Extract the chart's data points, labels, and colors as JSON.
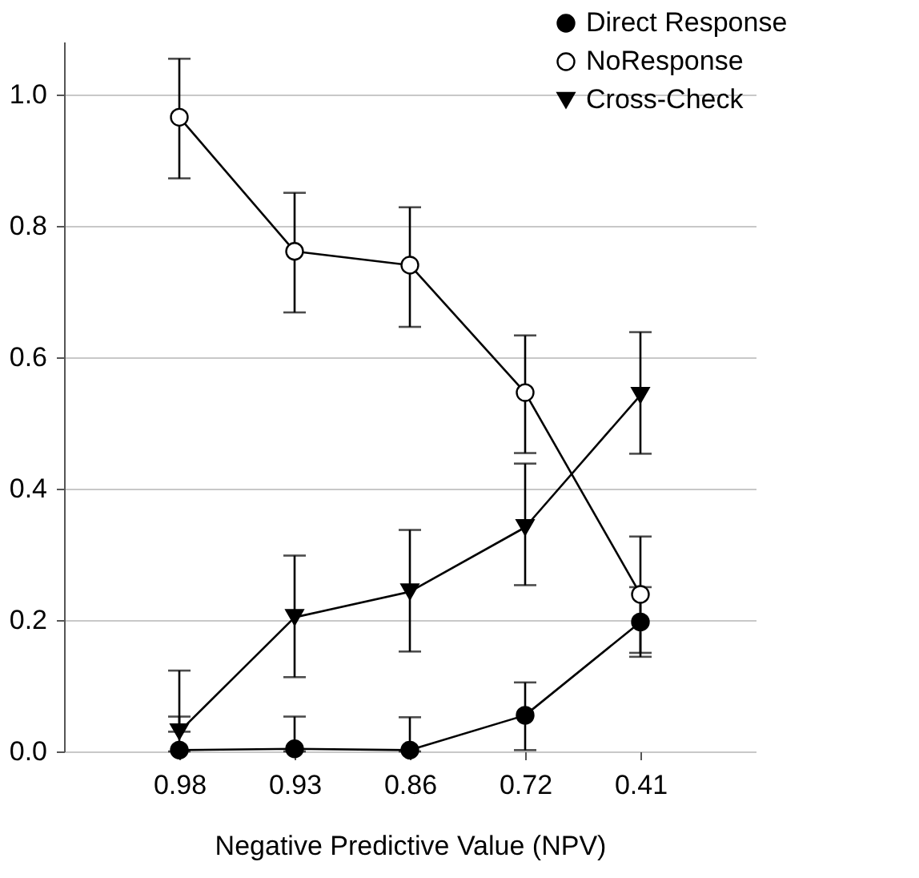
{
  "chart_data": {
    "type": "line",
    "xlabel": "Negative Predictive Value (NPV)",
    "categories": [
      "0.98",
      "0.93",
      "0.86",
      "0.72",
      "0.41"
    ],
    "ylim": [
      0,
      1.08
    ],
    "yticks": [
      {
        "value": 0,
        "label": "0.0"
      },
      {
        "value": 0.2,
        "label": "0.2"
      },
      {
        "value": 0.4,
        "label": "0.4"
      },
      {
        "value": 0.6,
        "label": "0.6"
      },
      {
        "value": 0.8,
        "label": "0.8"
      },
      {
        "value": 1,
        "label": "1.0"
      }
    ],
    "grid": "y",
    "legend": "top right",
    "line_style": "solid",
    "series": [
      {
        "name": "Direct Response",
        "color": "#000000",
        "marker": "circle",
        "values": [
          0.002,
          0.004,
          0.002,
          0.055,
          0.197
        ],
        "errors": [
          [
            0,
            0.053
          ],
          [
            0,
            0.053
          ],
          [
            0,
            0.052
          ],
          [
            0.002,
            0.105
          ],
          [
            0.144,
            0.25
          ]
        ]
      },
      {
        "name": "NoResponse",
        "color": "#000000",
        "marker": "circle-open",
        "values": [
          0.965,
          0.761,
          0.74,
          0.546,
          0.239
        ],
        "errors": [
          [
            0.872,
            1.054
          ],
          [
            0.668,
            0.85
          ],
          [
            0.646,
            0.828
          ],
          [
            0.454,
            0.633
          ],
          [
            0.15,
            0.327
          ]
        ]
      },
      {
        "name": "Cross-Check",
        "color": "#000000",
        "marker": "triangle",
        "values": [
          0.03,
          0.204,
          0.243,
          0.341,
          0.542
        ],
        "errors": [
          [
            0.03,
            0.123
          ],
          [
            0.113,
            0.298
          ],
          [
            0.152,
            0.337
          ],
          [
            0.253,
            0.438
          ],
          [
            0.453,
            0.638
          ]
        ]
      }
    ]
  }
}
